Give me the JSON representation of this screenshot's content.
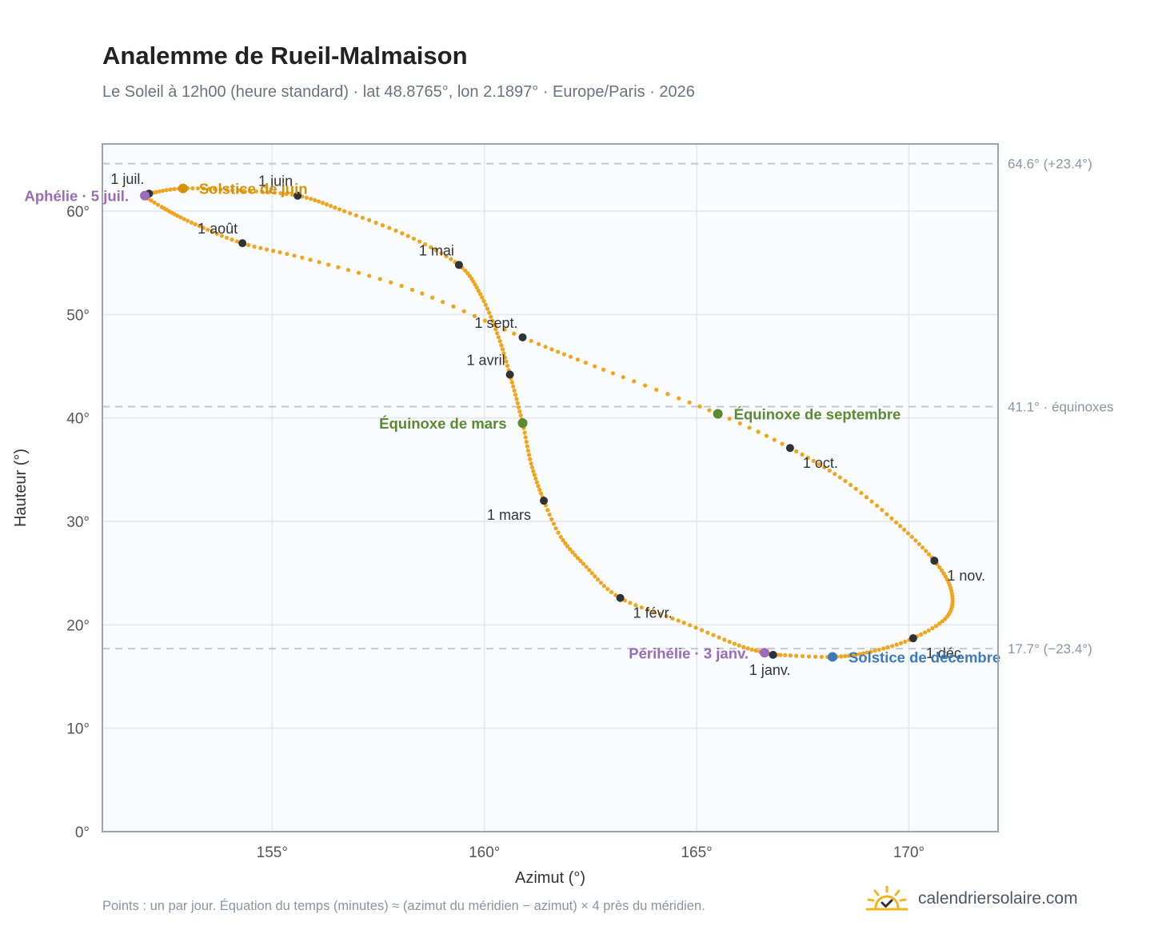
{
  "header": {
    "title": "Analemme de Rueil-Malmaison",
    "subtitle": "Le Soleil à 12h00 (heure standard) · lat 48.8765°, lon 2.1897° · Europe/Paris · 2026"
  },
  "footer": {
    "note": "Points : un par jour. Équation du temps (minutes) ≈ (azimut du méridien − azimut) × 4 près du méridien.",
    "brand": "calendriersolaire.com",
    "brand_icon": "sun-check-icon"
  },
  "colors": {
    "curve": "#f0a521",
    "month_marker": "#2e333a",
    "solstice_june": "#d4910a",
    "solstice_december": "#3a7abd",
    "equinox": "#5a8a32",
    "apsis": "#9a6bb8",
    "reference_line": "#c2c8d0",
    "plot_background": "#f9fbfd",
    "grid": "#e3e8ee",
    "frame": "#9aa4b0"
  },
  "chart_data": {
    "type": "scatter",
    "xlabel": "Azimut (°)",
    "ylabel": "Hauteur (°)",
    "xlim": [
      151.0,
      172.1
    ],
    "ylim": [
      0,
      66.5
    ],
    "xticks": [
      {
        "value": 155,
        "label": "155°"
      },
      {
        "value": 160,
        "label": "160°"
      },
      {
        "value": 165,
        "label": "165°"
      },
      {
        "value": 170,
        "label": "170°"
      }
    ],
    "yticks": [
      {
        "value": 0,
        "label": "0°"
      },
      {
        "value": 10,
        "label": "10°"
      },
      {
        "value": 20,
        "label": "20°"
      },
      {
        "value": 30,
        "label": "30°"
      },
      {
        "value": 40,
        "label": "40°"
      },
      {
        "value": 50,
        "label": "50°"
      },
      {
        "value": 60,
        "label": "60°"
      }
    ],
    "grid": true,
    "reference_lines": [
      {
        "y": 64.6,
        "label": "64.6° (+23.4°)"
      },
      {
        "y": 41.1,
        "label": "41.1° · équinoxes"
      },
      {
        "y": 17.7,
        "label": "17.7° (−23.4°)"
      }
    ],
    "path_keypoints": [
      {
        "date": "2026-01-01",
        "x": 166.8,
        "y": 17.1
      },
      {
        "date": "2026-01-11",
        "x": 166.0,
        "y": 18.0
      },
      {
        "date": "2026-01-21",
        "x": 164.7,
        "y": 20.2
      },
      {
        "date": "2026-02-01",
        "x": 163.2,
        "y": 22.6
      },
      {
        "date": "2026-02-11",
        "x": 162.4,
        "y": 25.6
      },
      {
        "date": "2026-02-21",
        "x": 161.8,
        "y": 28.5
      },
      {
        "date": "2026-03-01",
        "x": 161.4,
        "y": 32.0
      },
      {
        "date": "2026-03-11",
        "x": 161.1,
        "y": 35.6
      },
      {
        "date": "2026-03-20",
        "x": 160.9,
        "y": 39.5
      },
      {
        "date": "2026-04-01",
        "x": 160.6,
        "y": 44.2
      },
      {
        "date": "2026-04-11",
        "x": 160.3,
        "y": 48.2
      },
      {
        "date": "2026-04-21",
        "x": 159.9,
        "y": 52.0
      },
      {
        "date": "2026-05-01",
        "x": 159.4,
        "y": 54.8
      },
      {
        "date": "2026-05-11",
        "x": 158.2,
        "y": 57.6
      },
      {
        "date": "2026-05-21",
        "x": 156.7,
        "y": 60.0
      },
      {
        "date": "2026-06-01",
        "x": 155.6,
        "y": 61.5
      },
      {
        "date": "2026-06-11",
        "x": 154.2,
        "y": 62.0
      },
      {
        "date": "2026-06-21",
        "x": 152.9,
        "y": 62.2
      },
      {
        "date": "2026-07-01",
        "x": 152.1,
        "y": 61.7
      },
      {
        "date": "2026-07-05",
        "x": 152.0,
        "y": 61.5
      },
      {
        "date": "2026-07-11",
        "x": 152.4,
        "y": 60.4
      },
      {
        "date": "2026-07-21",
        "x": 153.1,
        "y": 58.9
      },
      {
        "date": "2026-08-01",
        "x": 154.3,
        "y": 56.9
      },
      {
        "date": "2026-08-11",
        "x": 155.9,
        "y": 55.3
      },
      {
        "date": "2026-08-21",
        "x": 158.3,
        "y": 52.4
      },
      {
        "date": "2026-09-01",
        "x": 160.9,
        "y": 47.8
      },
      {
        "date": "2026-09-11",
        "x": 162.6,
        "y": 45.0
      },
      {
        "date": "2026-09-23",
        "x": 165.5,
        "y": 40.4
      },
      {
        "date": "2026-10-01",
        "x": 167.2,
        "y": 37.1
      },
      {
        "date": "2026-10-11",
        "x": 168.5,
        "y": 33.9
      },
      {
        "date": "2026-10-21",
        "x": 169.7,
        "y": 29.9
      },
      {
        "date": "2026-11-01",
        "x": 170.6,
        "y": 26.2
      },
      {
        "date": "2026-11-11",
        "x": 171.0,
        "y": 23.3
      },
      {
        "date": "2026-11-21",
        "x": 170.9,
        "y": 20.8
      },
      {
        "date": "2026-12-01",
        "x": 170.1,
        "y": 18.7
      },
      {
        "date": "2026-12-11",
        "x": 169.1,
        "y": 17.4
      },
      {
        "date": "2026-12-21",
        "x": 168.2,
        "y": 16.9
      },
      {
        "date": "2026-12-31",
        "x": 166.9,
        "y": 17.1
      }
    ],
    "month_markers": [
      {
        "label": "1 janv.",
        "x": 166.8,
        "y": 17.1,
        "pos": "below"
      },
      {
        "label": "1 févr.",
        "x": 163.2,
        "y": 22.6,
        "pos": "below-right"
      },
      {
        "label": "1 mars",
        "x": 161.4,
        "y": 32.0,
        "pos": "below-left"
      },
      {
        "label": "1 avril",
        "x": 160.6,
        "y": 44.2,
        "pos": "above-left"
      },
      {
        "label": "1 mai",
        "x": 159.4,
        "y": 54.8,
        "pos": "above-left"
      },
      {
        "label": "1 juin",
        "x": 155.6,
        "y": 61.5,
        "pos": "above-left"
      },
      {
        "label": "1 juil.",
        "x": 152.1,
        "y": 61.7,
        "pos": "above-left"
      },
      {
        "label": "1 août",
        "x": 154.3,
        "y": 56.9,
        "pos": "above-left"
      },
      {
        "label": "1 sept.",
        "x": 160.9,
        "y": 47.8,
        "pos": "above-left"
      },
      {
        "label": "1 oct.",
        "x": 167.2,
        "y": 37.1,
        "pos": "below-right"
      },
      {
        "label": "1 nov.",
        "x": 170.6,
        "y": 26.2,
        "pos": "below-right"
      },
      {
        "label": "1 déc.",
        "x": 170.1,
        "y": 18.7,
        "pos": "below-right"
      }
    ],
    "events": [
      {
        "label": "Solstice de juin",
        "x": 152.9,
        "y": 62.2,
        "color": "#d4910a",
        "side": "right"
      },
      {
        "label": "Aphélie · 5 juil.",
        "x": 152.0,
        "y": 61.5,
        "color": "#9a6bb8",
        "side": "left"
      },
      {
        "label": "Équinoxe de mars",
        "x": 160.9,
        "y": 39.5,
        "color": "#5a8a32",
        "side": "left"
      },
      {
        "label": "Équinoxe de septembre",
        "x": 165.5,
        "y": 40.4,
        "color": "#5a8a32",
        "side": "right"
      },
      {
        "label": "Périhélie · 3 janv.",
        "x": 166.6,
        "y": 17.3,
        "color": "#9a6bb8",
        "side": "left"
      },
      {
        "label": "Solstice de décembre",
        "x": 168.2,
        "y": 16.9,
        "color": "#3a7abd",
        "side": "right"
      }
    ]
  }
}
